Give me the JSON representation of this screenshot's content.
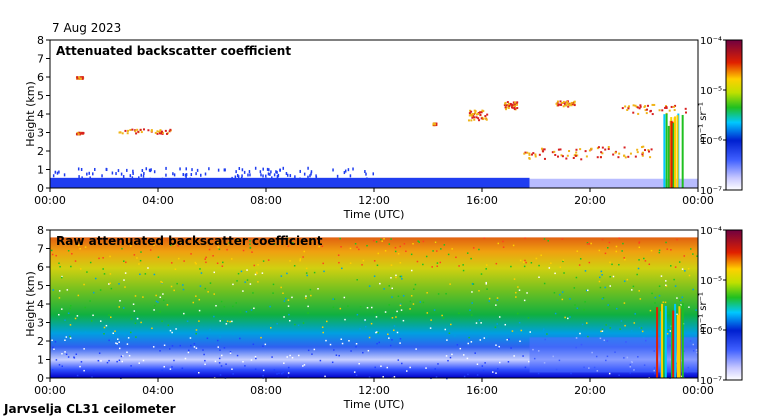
{
  "date_label": "7 Aug 2023",
  "instrument_label": "Jarvselja CL31 ceilometer",
  "colors": {
    "axis": "#000000",
    "near_ground": "#1f3df0",
    "cloud_low": "#f0b418",
    "cloud_high": "#d82020"
  },
  "chart_data": [
    {
      "type": "heatmap",
      "title": "Attenuated backscatter coefficient",
      "xlabel": "Time (UTC)",
      "ylabel": "Height (km)",
      "xlim": [
        "00:00",
        "00:00"
      ],
      "x_ticks": [
        "00:00",
        "04:00",
        "08:00",
        "12:00",
        "16:00",
        "20:00",
        "00:00"
      ],
      "ylim": [
        0,
        8
      ],
      "y_ticks": [
        "0",
        "1",
        "2",
        "3",
        "4",
        "5",
        "6",
        "7",
        "8"
      ],
      "colorbar": {
        "label": "m⁻¹ sr⁻¹",
        "scale": "log",
        "range": [
          1e-07,
          0.0001
        ],
        "ticks": [
          "10⁻⁷",
          "10⁻⁶",
          "10⁻⁵",
          "10⁻⁴"
        ]
      },
      "grid": false
    },
    {
      "type": "heatmap",
      "title": "Raw attenuated backscatter coefficient",
      "xlabel": "Time (UTC)",
      "ylabel": "Height (km)",
      "xlim": [
        "00:00",
        "00:00"
      ],
      "x_ticks": [
        "00:00",
        "04:00",
        "08:00",
        "12:00",
        "16:00",
        "20:00",
        "00:00"
      ],
      "ylim": [
        0,
        8
      ],
      "y_ticks": [
        "0",
        "1",
        "2",
        "3",
        "4",
        "5",
        "6",
        "7",
        "8"
      ],
      "colorbar": {
        "label": "m⁻¹ sr⁻¹",
        "scale": "log",
        "range": [
          1e-07,
          0.0001
        ],
        "ticks": [
          "10⁻⁷",
          "10⁻⁶",
          "10⁻⁵",
          "10⁻⁴"
        ]
      },
      "grid": false
    }
  ]
}
